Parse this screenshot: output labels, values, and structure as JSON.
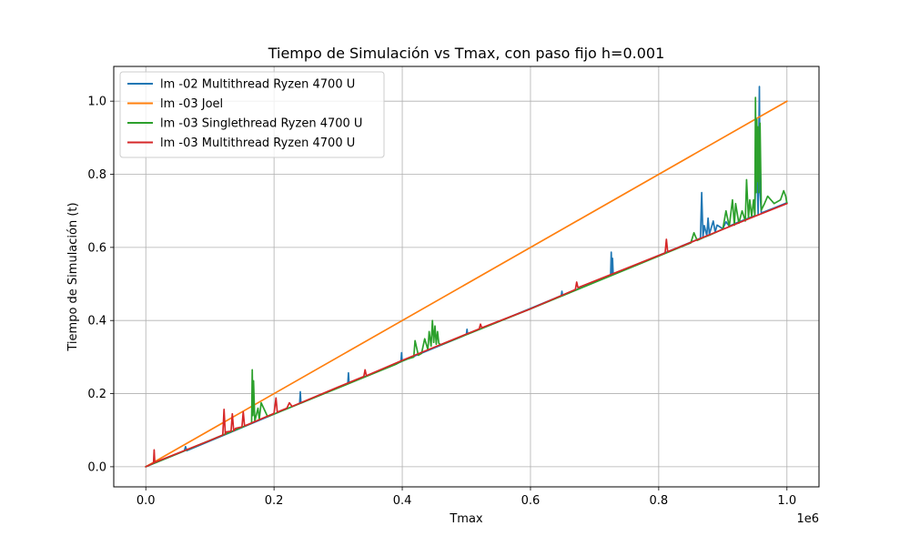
{
  "chart_data": {
    "type": "line",
    "title": "Tiempo de Simulación vs Tmax, con paso fijo h=0.001",
    "xlabel": "Tmax",
    "ylabel": "Tiempo de Simulación (t)",
    "x_offset_text": "1e6",
    "xlim": [
      -0.05,
      1.05
    ],
    "ylim": [
      -0.055,
      1.095
    ],
    "x_scale_factor": 1000000,
    "xticks": [
      0.0,
      0.2,
      0.4,
      0.6,
      0.8,
      1.0
    ],
    "xtick_labels": [
      "0.0",
      "0.2",
      "0.4",
      "0.6",
      "0.8",
      "1.0"
    ],
    "yticks": [
      0.0,
      0.2,
      0.4,
      0.6,
      0.8,
      1.0
    ],
    "ytick_labels": [
      "0.0",
      "0.2",
      "0.4",
      "0.6",
      "0.8",
      "1.0"
    ],
    "grid": true,
    "legend_position": "upper-left",
    "series": [
      {
        "name": "lm -02 Multithread Ryzen 4700 U",
        "color": "#1f77b4",
        "x": [
          0.0,
          0.06,
          0.062,
          0.064,
          0.2,
          0.24,
          0.241,
          0.242,
          0.31,
          0.315,
          0.316,
          0.317,
          0.39,
          0.398,
          0.399,
          0.4,
          0.49,
          0.5,
          0.501,
          0.502,
          0.56,
          0.64,
          0.648,
          0.649,
          0.65,
          0.72,
          0.725,
          0.726,
          0.727,
          0.728,
          0.729,
          0.73,
          0.85,
          0.865,
          0.867,
          0.869,
          0.871,
          0.875,
          0.877,
          0.879,
          0.885,
          0.888,
          0.891,
          0.9,
          0.905,
          0.91,
          0.92,
          0.93,
          0.94,
          0.95,
          0.952,
          0.955,
          0.957,
          0.958,
          0.96,
          0.97,
          0.98,
          1.0
        ],
        "y": [
          0.0,
          0.043,
          0.055,
          0.044,
          0.144,
          0.173,
          0.205,
          0.174,
          0.224,
          0.228,
          0.257,
          0.229,
          0.281,
          0.287,
          0.312,
          0.289,
          0.354,
          0.362,
          0.376,
          0.363,
          0.404,
          0.462,
          0.468,
          0.48,
          0.468,
          0.52,
          0.523,
          0.587,
          0.525,
          0.57,
          0.527,
          0.527,
          0.614,
          0.625,
          0.75,
          0.628,
          0.66,
          0.632,
          0.68,
          0.636,
          0.672,
          0.642,
          0.661,
          0.651,
          0.67,
          0.658,
          0.666,
          0.673,
          0.68,
          0.687,
          0.9,
          0.69,
          1.04,
          0.75,
          0.694,
          0.701,
          0.708,
          0.722
        ]
      },
      {
        "name": "lm -03 Joel",
        "color": "#ff7f0e",
        "x": [
          0.0,
          1.0
        ],
        "y": [
          0.0,
          1.0
        ]
      },
      {
        "name": "lm -03 Singlethread Ryzen 4700 U",
        "color": "#2ca02c",
        "x": [
          0.0,
          0.15,
          0.165,
          0.166,
          0.167,
          0.168,
          0.17,
          0.175,
          0.177,
          0.18,
          0.19,
          0.39,
          0.395,
          0.4,
          0.41,
          0.418,
          0.42,
          0.425,
          0.43,
          0.435,
          0.44,
          0.442,
          0.445,
          0.447,
          0.449,
          0.451,
          0.453,
          0.455,
          0.457,
          0.46,
          0.6,
          0.84,
          0.85,
          0.855,
          0.86,
          0.87,
          0.88,
          0.9,
          0.905,
          0.91,
          0.915,
          0.918,
          0.92,
          0.925,
          0.93,
          0.935,
          0.937,
          0.94,
          0.942,
          0.945,
          0.948,
          0.95,
          0.951,
          0.952,
          0.953,
          0.954,
          0.955,
          0.956,
          0.958,
          0.96,
          0.965,
          0.97,
          0.98,
          0.99,
          0.995,
          0.998,
          1.0
        ],
        "y": [
          0.0,
          0.108,
          0.119,
          0.265,
          0.14,
          0.235,
          0.125,
          0.16,
          0.13,
          0.175,
          0.137,
          0.28,
          0.285,
          0.289,
          0.296,
          0.3,
          0.345,
          0.305,
          0.31,
          0.35,
          0.32,
          0.37,
          0.33,
          0.4,
          0.34,
          0.385,
          0.335,
          0.37,
          0.338,
          0.333,
          0.432,
          0.605,
          0.612,
          0.64,
          0.619,
          0.627,
          0.634,
          0.65,
          0.7,
          0.657,
          0.73,
          0.661,
          0.72,
          0.666,
          0.7,
          0.672,
          0.785,
          0.68,
          0.73,
          0.685,
          0.73,
          0.687,
          1.01,
          0.75,
          0.95,
          0.78,
          0.93,
          0.75,
          0.94,
          0.702,
          0.72,
          0.74,
          0.72,
          0.73,
          0.755,
          0.74,
          0.72
        ]
      },
      {
        "name": "lm -03 Multithread Ryzen 4700 U",
        "color": "#d62728",
        "x": [
          0.0,
          0.012,
          0.013,
          0.014,
          0.1,
          0.12,
          0.122,
          0.124,
          0.125,
          0.133,
          0.135,
          0.137,
          0.14,
          0.15,
          0.152,
          0.154,
          0.16,
          0.2,
          0.203,
          0.205,
          0.21,
          0.22,
          0.224,
          0.228,
          0.3,
          0.34,
          0.342,
          0.344,
          0.4,
          0.5,
          0.52,
          0.522,
          0.524,
          0.6,
          0.67,
          0.672,
          0.674,
          0.8,
          0.81,
          0.812,
          0.814,
          0.95,
          1.0
        ],
        "y": [
          0.0,
          0.01,
          0.046,
          0.012,
          0.072,
          0.087,
          0.157,
          0.089,
          0.095,
          0.097,
          0.145,
          0.098,
          0.105,
          0.109,
          0.15,
          0.112,
          0.116,
          0.146,
          0.188,
          0.149,
          0.153,
          0.16,
          0.175,
          0.165,
          0.218,
          0.247,
          0.265,
          0.249,
          0.291,
          0.363,
          0.377,
          0.39,
          0.38,
          0.432,
          0.485,
          0.505,
          0.49,
          0.578,
          0.585,
          0.622,
          0.588,
          0.685,
          0.72
        ]
      }
    ]
  }
}
